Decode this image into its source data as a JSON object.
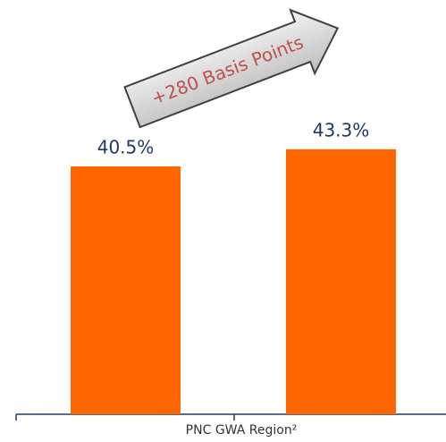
{
  "chart_data": {
    "type": "bar",
    "categories": [
      null,
      null
    ],
    "values": [
      40.5,
      43.3
    ],
    "value_labels": [
      "40.5%",
      "43.3%"
    ],
    "color": "#ff6600",
    "x_label": "PNC GWA Region²",
    "annotation": "+280 Basis Points"
  }
}
